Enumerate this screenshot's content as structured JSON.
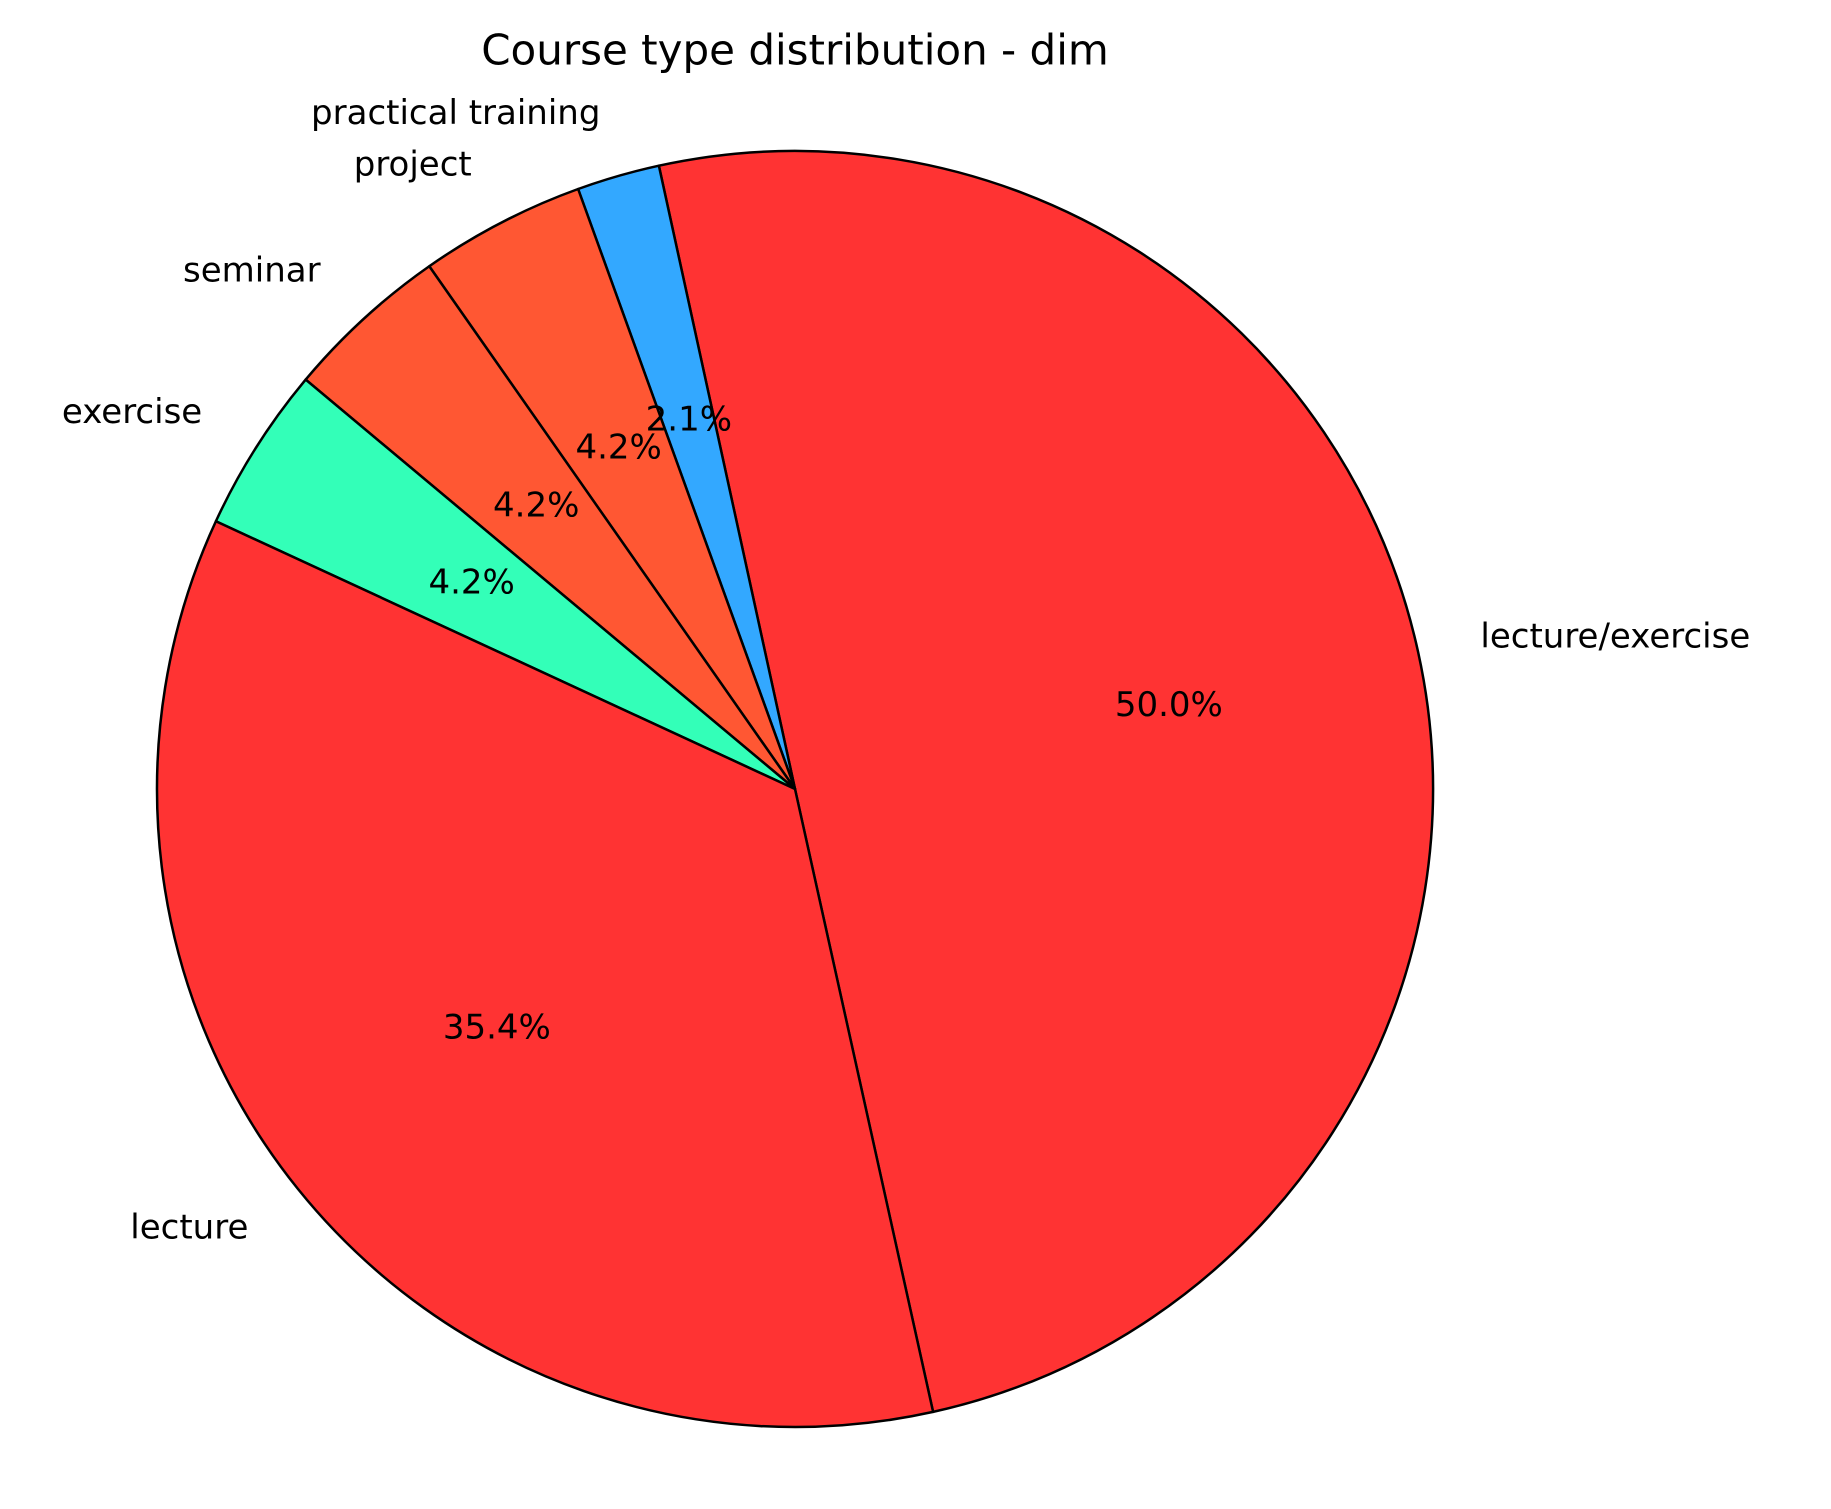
{
  "chart_data": {
    "type": "pie",
    "title": "Course type distribution - dim",
    "categories": [
      "lecture/exercise",
      "practical training",
      "project",
      "seminar",
      "exercise",
      "lecture"
    ],
    "values": [
      50.0,
      2.1,
      4.2,
      4.2,
      4.2,
      35.4
    ],
    "value_labels": [
      "50.0%",
      "2.1%",
      "4.2%",
      "4.2%",
      "4.2%",
      "35.4%"
    ],
    "colors": [
      "#ff3333",
      "#33a8ff",
      "#ff5733",
      "#ff5733",
      "#33ffb8",
      "#ff3333"
    ]
  }
}
